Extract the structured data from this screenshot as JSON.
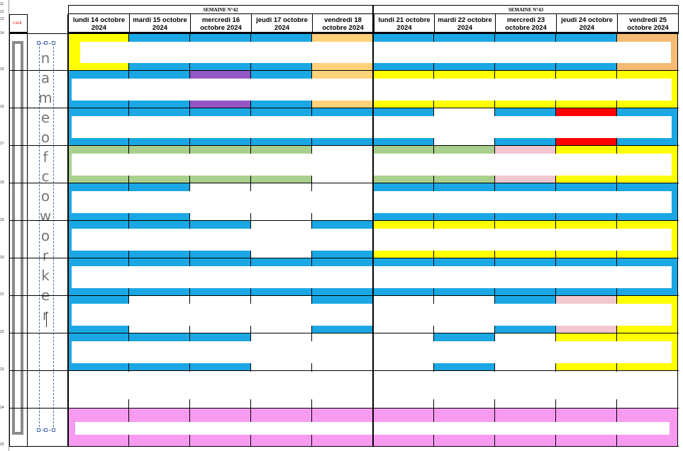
{
  "row_numbers": [
    "11",
    "12",
    "13",
    "14",
    "15",
    "16",
    "17",
    "18",
    "19",
    "20",
    "21",
    "22",
    "23",
    "24",
    "25"
  ],
  "user_label": "USER",
  "weeks": [
    {
      "label": "SEMAINE N°42"
    },
    {
      "label": "SEMAINE N°43"
    }
  ],
  "days": [
    "lundi 14 octobre 2024",
    "mardi 15 octobre 2024",
    "mercredi 16 octobre 2024",
    "jeudi 17 octobre 2024",
    "vendredi 18 octobre 2024",
    "lundi 21 octobre 2024",
    "mardi 22 octobre 2024",
    "mercredi 23 octobre 2024",
    "jeudi 24 octobre 2024",
    "vendredi 25 octobre 2024"
  ],
  "vertical_textbox": {
    "letters": [
      "n",
      "a",
      "m",
      "e",
      "o",
      "f",
      "c",
      "o",
      "w",
      "o",
      "r",
      "k",
      "e",
      "r"
    ]
  },
  "colors": {
    "blue": "#1aa7e4",
    "yellow": "#ffff00",
    "orange": "#ffd27a",
    "purple": "#9457c8",
    "green": "#a9cf8c",
    "pink_light": "#f2c7cf",
    "red": "#ff0000",
    "magenta": "#f79bf0",
    "sand": "#f5bb73",
    "white": "#ffffff"
  },
  "grid": [
    [
      "yellow",
      "blue",
      "blue",
      "blue",
      "orange",
      "blue",
      "blue",
      "blue",
      "blue",
      "sand"
    ],
    [
      "blue",
      "blue",
      "purple",
      "blue",
      "orange",
      "yellow",
      "yellow",
      "yellow",
      "yellow",
      "yellow"
    ],
    [
      "blue",
      "blue",
      "blue",
      "blue",
      "blue",
      "blue",
      "white",
      "blue",
      "red",
      "blue"
    ],
    [
      "green",
      "green",
      "green",
      "green",
      "white",
      "green",
      "green",
      "pink_light",
      "yellow",
      "yellow"
    ],
    [
      "blue",
      "blue",
      "white",
      "white",
      "white",
      "blue",
      "blue",
      "blue",
      "blue",
      "blue"
    ],
    [
      "blue",
      "blue",
      "blue",
      "white",
      "blue",
      "yellow",
      "yellow",
      "yellow",
      "yellow",
      "yellow"
    ],
    [
      "blue",
      "blue",
      "blue",
      "blue",
      "blue",
      "blue",
      "blue",
      "blue",
      "blue",
      "blue"
    ],
    [
      "blue",
      "white",
      "white",
      "white",
      "blue",
      "white",
      "white",
      "blue",
      "pink_light",
      "yellow"
    ],
    [
      "blue",
      "blue",
      "blue",
      "white",
      "white",
      "white",
      "blue",
      "white",
      "yellow",
      "yellow"
    ],
    [
      "white",
      "white",
      "white",
      "white",
      "white",
      "white",
      "white",
      "white",
      "white",
      "white"
    ],
    [
      "magenta",
      "magenta",
      "magenta",
      "magenta",
      "magenta",
      "magenta",
      "magenta",
      "magenta",
      "magenta",
      "magenta"
    ]
  ],
  "dotted_week43": true
}
